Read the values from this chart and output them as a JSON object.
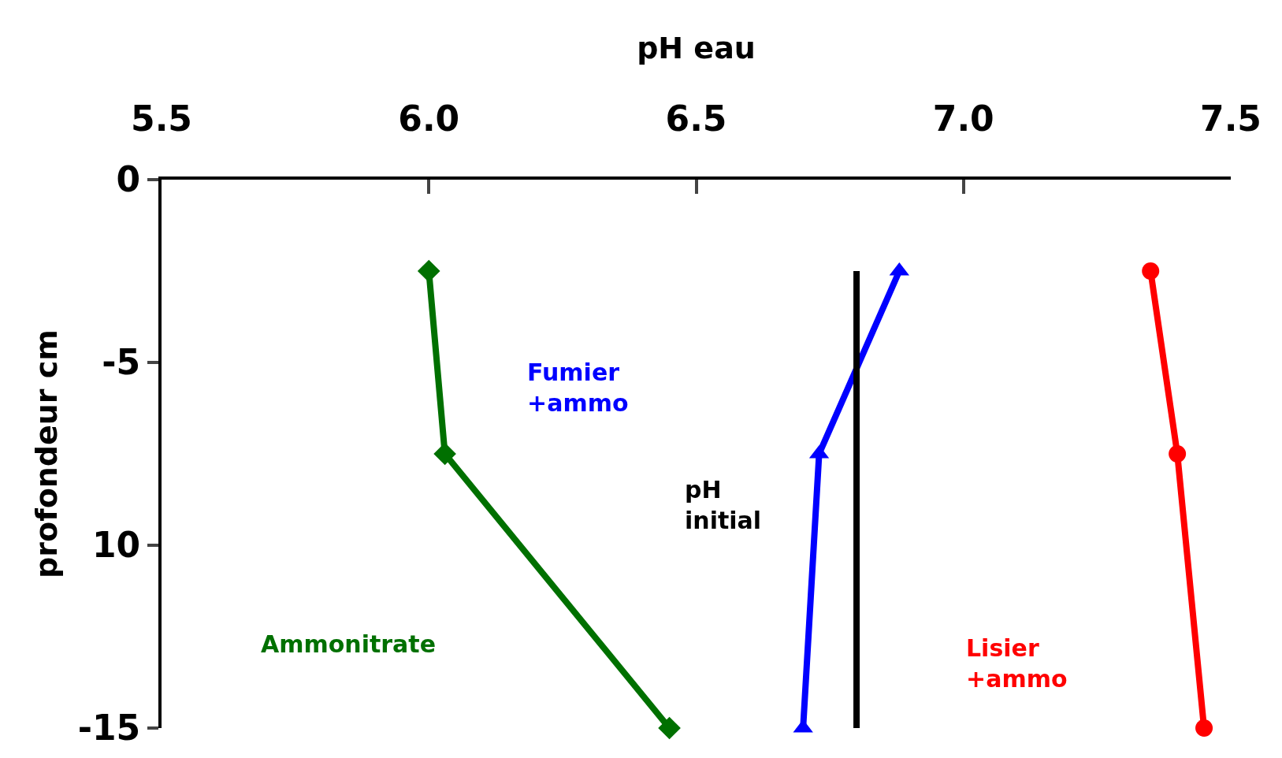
{
  "chart_data": {
    "type": "line",
    "xlabel": "pH eau",
    "ylabel": "profondeur cm",
    "xlim": [
      5.5,
      7.5
    ],
    "xticks": [
      {
        "value": 5.5,
        "label": "5.5"
      },
      {
        "value": 6.0,
        "label": "6.0"
      },
      {
        "value": 6.5,
        "label": "6.5"
      },
      {
        "value": 7.0,
        "label": "7.0"
      },
      {
        "value": 7.5,
        "label": "7.5"
      }
    ],
    "ylim": [
      -15,
      0
    ],
    "yticks": [
      0,
      -5,
      {
        "value": -10,
        "label": "10"
      },
      -15
    ],
    "legend": false,
    "line_style": "solid",
    "series": [
      {
        "name": "Ammonitrate",
        "color": "#007000",
        "marker": "diamond",
        "x": [
          6.0,
          6.03,
          6.45
        ],
        "values": [
          -2.5,
          -7.5,
          -15
        ]
      },
      {
        "name": "Fumier\n+ammo",
        "color": "#0000ff",
        "marker": "triangle",
        "x": [
          6.88,
          6.73,
          6.7
        ],
        "values": [
          -2.5,
          -7.5,
          -15
        ]
      },
      {
        "name": "pH\ninitial",
        "color": "#000000",
        "marker": "none",
        "x": [
          6.8,
          6.8
        ],
        "values": [
          -2.5,
          -15
        ]
      },
      {
        "name": "Lisier\n+ammo",
        "color": "#ff0000",
        "marker": "circle",
        "x": [
          7.35,
          7.4,
          7.45
        ],
        "values": [
          -2.5,
          -7.5,
          -15
        ]
      }
    ]
  }
}
